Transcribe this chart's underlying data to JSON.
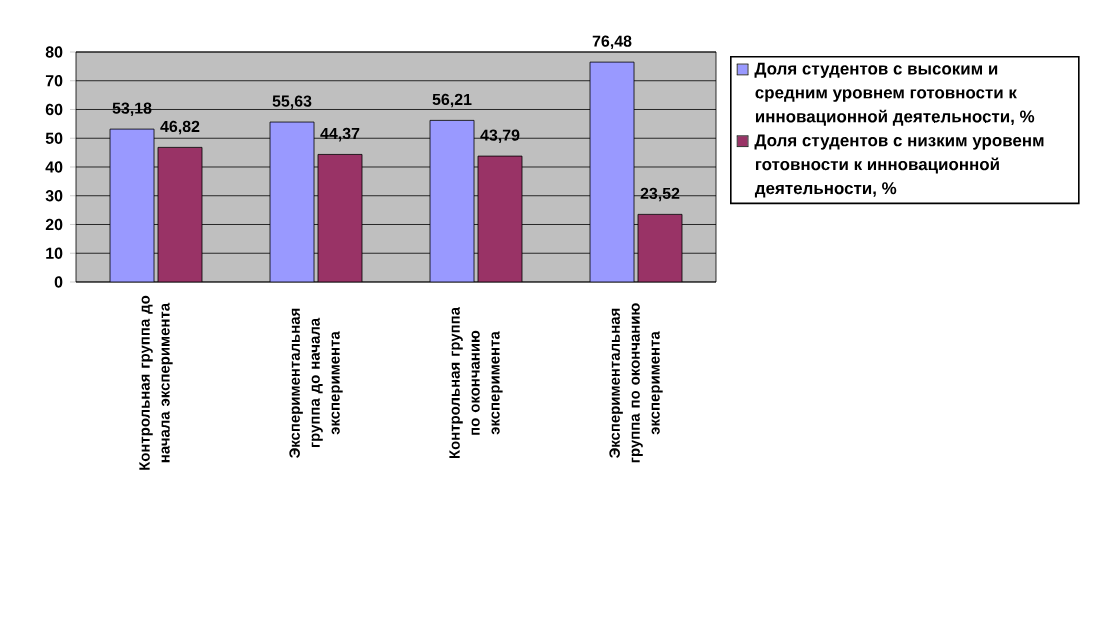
{
  "chart_data": {
    "type": "bar",
    "categories": [
      "Контрольная группа до начала эксперимента",
      "Экспериментальная группа до начала эксперимента",
      "Контрольная группа по окончанию эксперимента",
      "Экспериментальная группа по окончанию эксперимента"
    ],
    "series": [
      {
        "name": "Доля студентов с высоким и средним уровнем готовности к инновационной деятельности, %",
        "color": "#9999ff",
        "values": [
          53.18,
          55.63,
          56.21,
          76.48
        ],
        "value_labels": [
          "53,18",
          "55,63",
          "56,21",
          "76,48"
        ]
      },
      {
        "name": "Доля студентов с низким уровенм готовности к инновационной деятельности, %",
        "color": "#993366",
        "values": [
          46.82,
          44.37,
          43.79,
          23.52
        ],
        "value_labels": [
          "46,82",
          "44,37",
          "43,79",
          "23,52"
        ]
      }
    ],
    "ylim": [
      0,
      80
    ],
    "yticks": [
      0,
      10,
      20,
      30,
      40,
      50,
      60,
      70,
      80
    ],
    "grid": "y",
    "legend": "right"
  }
}
